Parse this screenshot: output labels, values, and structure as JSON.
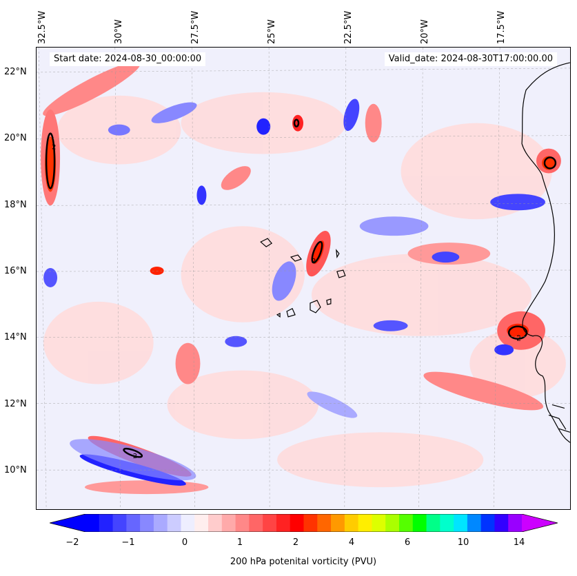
{
  "header": {
    "start_date": "Start date: 2024-08-30_00:00:00",
    "valid_date": "Valid_date: 2024-08-30T17:00:00.00"
  },
  "longitude_labels": [
    "32.5°W",
    "30°W",
    "27.5°W",
    "25°W",
    "22.5°W",
    "20°W",
    "17.5°W"
  ],
  "latitude_labels": [
    "22°N",
    "20°N",
    "18°N",
    "16°N",
    "14°N",
    "12°N",
    "10°N"
  ],
  "contour_labels": [
    "2",
    "2",
    "2",
    "2"
  ],
  "colorbar": {
    "label": "200 hPa potenital vorticity (PVU)",
    "tick_labels": [
      "−2",
      "−1",
      "0",
      "1",
      "2",
      "4",
      "6",
      "10",
      "14"
    ],
    "colors": [
      "#0000ff",
      "#2222ff",
      "#4444ff",
      "#6666ff",
      "#8888ff",
      "#aaaaff",
      "#ccccff",
      "#eeeeff",
      "#ffeeee",
      "#ffcccc",
      "#ffaaaa",
      "#ff8888",
      "#ff6666",
      "#ff4444",
      "#ff2222",
      "#ff0000",
      "#ff3300",
      "#ff6600",
      "#ff9900",
      "#ffcc00",
      "#ffee00",
      "#ddff00",
      "#aaff00",
      "#55ff00",
      "#00ff00",
      "#00ff88",
      "#00ffcc",
      "#00e5ff",
      "#0088ff",
      "#0033ff",
      "#3300ff",
      "#9900ff"
    ],
    "extend_low_color": "#0000ff",
    "extend_high_color": "#cc00ff"
  }
}
